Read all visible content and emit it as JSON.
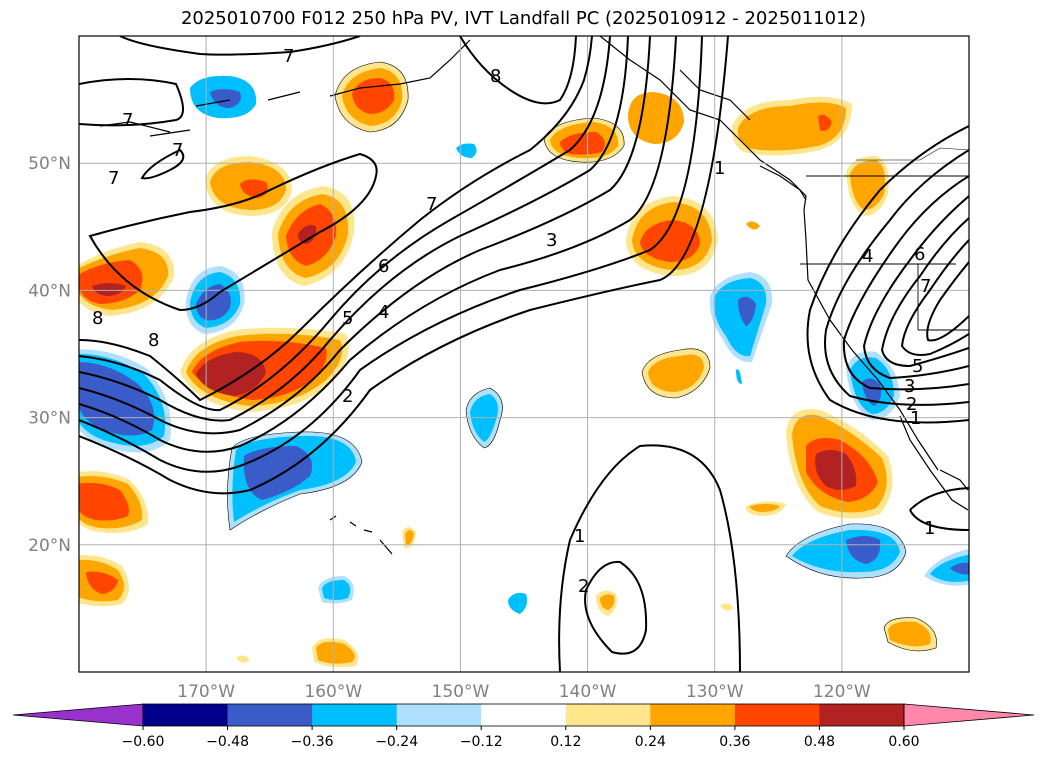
{
  "chart_data": {
    "type": "heatmap",
    "title": "2025010700 F012 250 hPa PV, IVT Landfall PC (2025010912 - 2025011012)",
    "map": {
      "lon_range": [
        -180,
        -110
      ],
      "lat_range": [
        10,
        60
      ],
      "lon_ticks": [
        -170,
        -160,
        -150,
        -140,
        -130,
        -120
      ],
      "lon_tick_labels": [
        "170°W",
        "160°W",
        "150°W",
        "140°W",
        "130°W",
        "120°W"
      ],
      "lat_ticks": [
        20,
        30,
        40,
        50
      ],
      "lat_tick_labels": [
        "20°N",
        "30°N",
        "40°N",
        "50°N"
      ],
      "grid": true
    },
    "colorbar": {
      "orientation": "horizontal",
      "extend": "both",
      "levels": [
        -0.6,
        -0.48,
        -0.36,
        -0.24,
        -0.12,
        0.12,
        0.24,
        0.36,
        0.48,
        0.6
      ],
      "level_labels": [
        "−0.60",
        "−0.48",
        "−0.36",
        "−0.24",
        "−0.12",
        "0.12",
        "0.24",
        "0.36",
        "0.48",
        "0.60"
      ],
      "colors": [
        "#9932cc",
        "#00008b",
        "#3a5cc8",
        "#00bfff",
        "#b0e0ff",
        "#ffffff",
        "#ffe68c",
        "#ffa500",
        "#ff4500",
        "#b22222",
        "#ff88aa"
      ]
    },
    "contour_labels": [
      "7",
      "7",
      "7",
      "7",
      "8",
      "8",
      "8",
      "7",
      "6",
      "5",
      "4",
      "3",
      "2",
      "1",
      "1",
      "2",
      "1",
      "6",
      "5",
      "4",
      "3",
      "2",
      "1",
      "7"
    ],
    "shaded_anomalies": [
      {
        "lon": -168,
        "lat": 55,
        "value": -0.42
      },
      {
        "lon": -160,
        "lat": 55,
        "value": 0.45
      },
      {
        "lon": -169,
        "lat": 48,
        "value": 0.36
      },
      {
        "lon": -178,
        "lat": 40,
        "value": 0.48
      },
      {
        "lon": -170,
        "lat": 39,
        "value": -0.42
      },
      {
        "lon": -164,
        "lat": 44,
        "value": 0.45
      },
      {
        "lon": -166,
        "lat": 34,
        "value": 0.55
      },
      {
        "lon": -176,
        "lat": 30,
        "value": -0.45
      },
      {
        "lon": -165,
        "lat": 26,
        "value": -0.4
      },
      {
        "lon": -177,
        "lat": 24,
        "value": 0.4
      },
      {
        "lon": -178,
        "lat": 16,
        "value": 0.4
      },
      {
        "lon": -139,
        "lat": 51,
        "value": 0.4
      },
      {
        "lon": -133,
        "lat": 52,
        "value": 0.3
      },
      {
        "lon": -133,
        "lat": 43,
        "value": 0.42
      },
      {
        "lon": -126,
        "lat": 38,
        "value": -0.4
      },
      {
        "lon": -132,
        "lat": 34,
        "value": 0.3
      },
      {
        "lon": -122,
        "lat": 52,
        "value": 0.4
      },
      {
        "lon": -120,
        "lat": 25,
        "value": 0.5
      },
      {
        "lon": -121,
        "lat": 31,
        "value": -0.4
      },
      {
        "lon": -120,
        "lat": 19,
        "value": -0.38
      },
      {
        "lon": -147,
        "lat": 30,
        "value": -0.32
      },
      {
        "lon": -157,
        "lat": 16,
        "value": -0.28
      },
      {
        "lon": -156,
        "lat": 11,
        "value": 0.3
      },
      {
        "lon": -117,
        "lat": 13,
        "value": 0.32
      }
    ]
  }
}
